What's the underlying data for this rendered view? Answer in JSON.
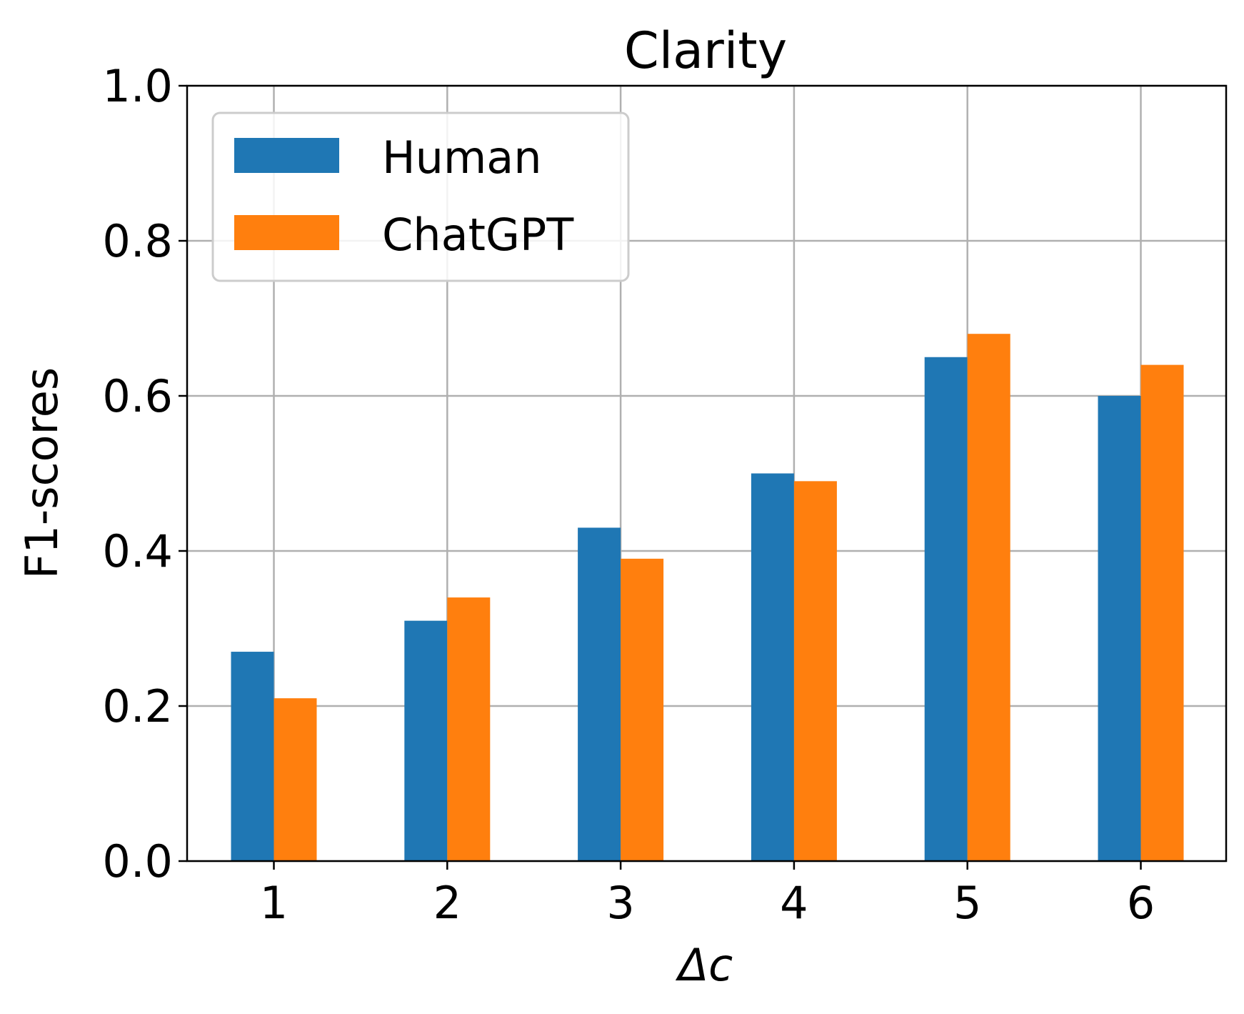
{
  "chart_data": {
    "type": "bar",
    "title": "Clarity",
    "xlabel": "Δc",
    "ylabel": "F1-scores",
    "categories": [
      "1",
      "2",
      "3",
      "4",
      "5",
      "6"
    ],
    "series": [
      {
        "name": "Human",
        "color": "#1f77b4",
        "values": [
          0.27,
          0.31,
          0.43,
          0.5,
          0.65,
          0.6
        ]
      },
      {
        "name": "ChatGPT",
        "color": "#ff7f0e",
        "values": [
          0.21,
          0.34,
          0.39,
          0.49,
          0.68,
          0.64
        ]
      }
    ],
    "ylim": [
      0,
      1.0
    ],
    "yticks": [
      "0.0",
      "0.2",
      "0.4",
      "0.6",
      "0.8",
      "1.0"
    ],
    "grid": true,
    "legend_position": "upper-left"
  }
}
